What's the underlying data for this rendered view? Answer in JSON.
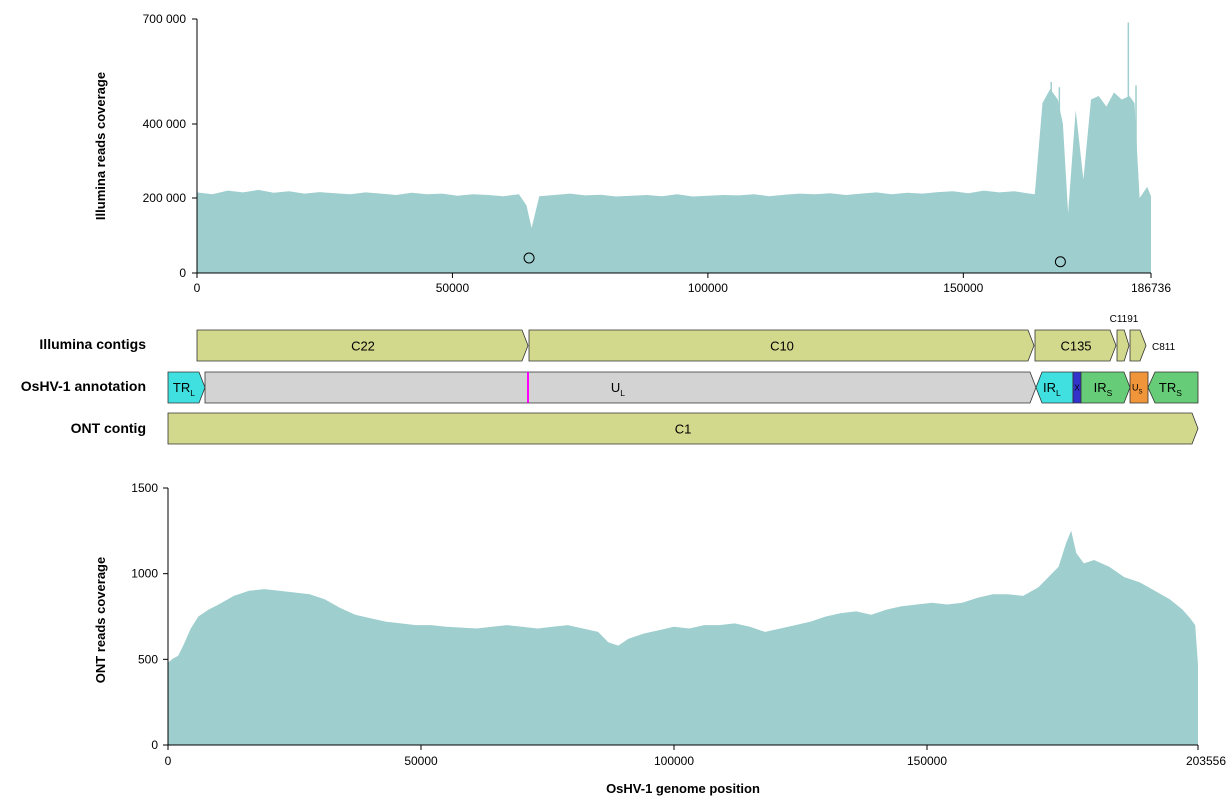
{
  "colors": {
    "coverage_fill": "#9ecece",
    "contig_fill": "#d3d98c",
    "ul_fill": "#d3d3d3",
    "tr_ir_l_fill": "#40e0e0",
    "s_fill": "#66cc77",
    "us_fill": "#f0953a",
    "x_fill": "#3333cc",
    "marker_line": "#ff00ff"
  },
  "chart_data": [
    {
      "type": "area",
      "ylabel": "Illumina reads coverage",
      "xlabel": "",
      "xlim": [
        0,
        186736
      ],
      "ylim": [
        0,
        700000
      ],
      "x_ticks": [
        0,
        50000,
        100000,
        150000,
        186736
      ],
      "x_tick_labels": [
        "0",
        "50000",
        "100000",
        "150000",
        "186736"
      ],
      "y_ticks": [
        0,
        200000,
        400000,
        700000
      ],
      "y_tick_labels": [
        "0",
        "200 000",
        "400 000",
        "700 000"
      ],
      "series_x": [
        0,
        3000,
        6000,
        9000,
        12000,
        15000,
        18000,
        21000,
        24000,
        27000,
        30000,
        33000,
        36000,
        39000,
        42000,
        45000,
        48000,
        51000,
        54000,
        57000,
        60000,
        63000,
        64500,
        65500,
        67000,
        70000,
        73000,
        76000,
        79000,
        82000,
        85000,
        88000,
        91000,
        94000,
        97000,
        100000,
        103000,
        106000,
        109000,
        112000,
        115000,
        118000,
        121000,
        124000,
        127000,
        130000,
        133000,
        136000,
        139000,
        142000,
        145000,
        148000,
        151000,
        154000,
        157000,
        160000,
        163000,
        164000,
        165500,
        167000,
        168500,
        169500,
        170500,
        172000,
        173500,
        175000,
        176500,
        178000,
        179500,
        181000,
        182500,
        183500,
        184500,
        186000,
        186736
      ],
      "series_y": [
        215000,
        210000,
        220000,
        215000,
        222000,
        214000,
        218000,
        212000,
        216000,
        213000,
        210000,
        215000,
        212000,
        208000,
        214000,
        210000,
        212000,
        206000,
        210000,
        208000,
        205000,
        210000,
        180000,
        120000,
        205000,
        208000,
        212000,
        207000,
        209000,
        204000,
        206000,
        208000,
        205000,
        210000,
        204000,
        206000,
        208000,
        207000,
        210000,
        205000,
        209000,
        212000,
        210000,
        213000,
        208000,
        212000,
        215000,
        210000,
        214000,
        212000,
        216000,
        218000,
        213000,
        220000,
        215000,
        218000,
        212000,
        210000,
        460000,
        500000,
        470000,
        400000,
        160000,
        440000,
        250000,
        470000,
        480000,
        450000,
        490000,
        470000,
        480000,
        460000,
        200000,
        230000,
        205000
      ],
      "spikes": [
        {
          "x": 167200,
          "y": 520000
        },
        {
          "x": 168800,
          "y": 505000
        },
        {
          "x": 182300,
          "y": 690000
        },
        {
          "x": 183800,
          "y": 510000
        }
      ],
      "annotations": [
        {
          "symbol": "circle",
          "x": 65000,
          "y": 40000
        },
        {
          "symbol": "circle",
          "x": 169000,
          "y": 30000
        }
      ]
    },
    {
      "type": "area",
      "ylabel": "ONT reads coverage",
      "xlabel": "OsHV-1 genome position",
      "xlim": [
        0,
        203556
      ],
      "ylim": [
        0,
        1500
      ],
      "x_ticks": [
        0,
        50000,
        100000,
        150000,
        203556
      ],
      "x_tick_labels": [
        "0",
        "50000",
        "100000",
        "150000",
        "203556"
      ],
      "y_ticks": [
        0,
        500,
        1000,
        1500
      ],
      "y_tick_labels": [
        "0",
        "500",
        "1000",
        "1500"
      ],
      "series_x": [
        0,
        1000,
        2000,
        3000,
        4500,
        6000,
        8000,
        10000,
        13000,
        16000,
        19000,
        22000,
        25000,
        28000,
        31000,
        34000,
        37000,
        40000,
        43000,
        46000,
        49000,
        52000,
        55000,
        58000,
        61000,
        64000,
        67000,
        70000,
        73000,
        76000,
        79000,
        82000,
        85000,
        87000,
        89000,
        91000,
        94000,
        97000,
        100000,
        103000,
        106000,
        109000,
        112000,
        115000,
        118000,
        121000,
        124000,
        127000,
        130000,
        133000,
        136000,
        139000,
        142000,
        145000,
        148000,
        151000,
        154000,
        157000,
        160000,
        163000,
        166000,
        169000,
        172000,
        174000,
        176000,
        177500,
        178500,
        179500,
        181000,
        183000,
        186000,
        189000,
        192000,
        195000,
        198000,
        200500,
        202000,
        203000,
        203556
      ],
      "series_y": [
        480,
        505,
        520,
        580,
        680,
        750,
        790,
        820,
        870,
        900,
        910,
        900,
        890,
        880,
        850,
        800,
        760,
        740,
        720,
        710,
        700,
        700,
        690,
        685,
        680,
        690,
        700,
        690,
        680,
        690,
        700,
        680,
        660,
        600,
        580,
        620,
        650,
        670,
        690,
        680,
        700,
        700,
        710,
        690,
        660,
        680,
        700,
        720,
        750,
        770,
        780,
        760,
        790,
        810,
        820,
        830,
        820,
        830,
        860,
        880,
        880,
        870,
        920,
        980,
        1040,
        1180,
        1250,
        1120,
        1060,
        1080,
        1040,
        980,
        950,
        900,
        850,
        790,
        740,
        700,
        470
      ],
      "annotations": []
    }
  ],
  "tracks": {
    "contigs_label": "Illumina contigs",
    "annotation_label": "OsHV-1 annotation",
    "ont_label": "ONT contig",
    "contigs": [
      {
        "name": "C22",
        "start": 0,
        "end": 65000
      },
      {
        "name": "C10",
        "start": 65000,
        "end": 164000
      },
      {
        "name": "C135",
        "start": 164000,
        "end": 176000
      },
      {
        "name": "C1191",
        "start": 176000,
        "end": 178500
      },
      {
        "name": "C811",
        "start": 178500,
        "end": 181500
      }
    ],
    "annotation": [
      {
        "name": "TR",
        "sub": "L",
        "start": 0,
        "end": 7500,
        "color_key": "tr_ir_l_fill"
      },
      {
        "name": "U",
        "sub": "L",
        "start": 7500,
        "end": 172000,
        "color_key": "ul_fill"
      },
      {
        "name": "IR",
        "sub": "L",
        "start": 172000,
        "end": 179700,
        "color_key": "tr_ir_l_fill"
      },
      {
        "name": "X",
        "sub": "",
        "start": 179700,
        "end": 181300,
        "color_key": "x_fill"
      },
      {
        "name": "IR",
        "sub": "S",
        "start": 181300,
        "end": 191800,
        "color_key": "s_fill"
      },
      {
        "name": "U",
        "sub": "S",
        "start": 191800,
        "end": 195200,
        "color_key": "us_fill"
      },
      {
        "name": "TR",
        "sub": "S",
        "start": 195200,
        "end": 203556,
        "color_key": "s_fill"
      }
    ],
    "ul_marker_position": 71500,
    "ont_contigs": [
      {
        "name": "C1",
        "start": 0,
        "end": 203556
      }
    ]
  }
}
